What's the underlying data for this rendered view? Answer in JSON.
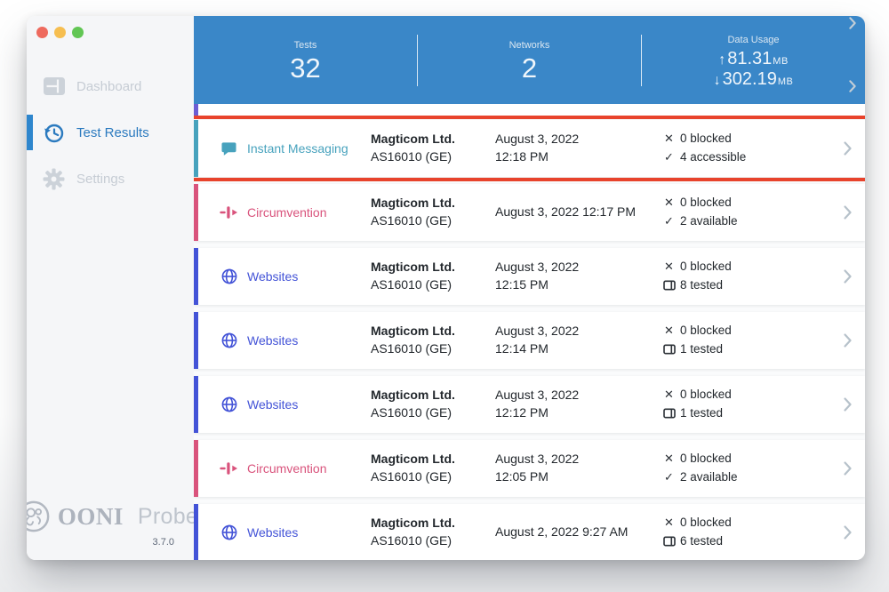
{
  "colors": {
    "header_blue": "#3a87c8",
    "active_blue": "#2b7abf",
    "indicator_blue": "#2e86cd",
    "highlight_red": "#e8432c",
    "instant_messaging": "#47a2bd",
    "circumvention": "#d9537c",
    "websites": "#4353d7",
    "peek_violet": "#6c5dd3"
  },
  "sidebar": {
    "items": [
      {
        "label": "Dashboard",
        "icon": "dashboard-icon",
        "active": false
      },
      {
        "label": "Test Results",
        "icon": "history-icon",
        "active": true
      },
      {
        "label": "Settings",
        "icon": "gear-icon",
        "active": false
      }
    ],
    "logo": {
      "brand": "OONI",
      "product": "Probe",
      "version": "3.7.0"
    }
  },
  "header": {
    "stats": [
      {
        "label": "Tests",
        "value": "32"
      },
      {
        "label": "Networks",
        "value": "2"
      },
      {
        "label": "Data Usage",
        "up": "81.31",
        "down": "302.19",
        "unit": "MB"
      }
    ]
  },
  "results": {
    "rows": [
      {
        "test": "Instant Messaging",
        "icon": "chat-icon",
        "color": "#47a2bd",
        "network": "Magticom Ltd.",
        "asn": "AS16010 (GE)",
        "date": "August 3, 2022 12:18 PM",
        "date_two_lines": true,
        "stats": [
          {
            "icon": "cross-icon",
            "text": "0 blocked"
          },
          {
            "icon": "check-icon",
            "text": "4 accessible"
          }
        ],
        "highlighted": true
      },
      {
        "test": "Circumvention",
        "icon": "circumvention-icon",
        "color": "#d9537c",
        "network": "Magticom Ltd.",
        "asn": "AS16010 (GE)",
        "date": "August 3, 2022 12:17 PM",
        "date_two_lines": false,
        "stats": [
          {
            "icon": "cross-icon",
            "text": "0 blocked"
          },
          {
            "icon": "check-icon",
            "text": "2 available"
          }
        ],
        "highlighted": false
      },
      {
        "test": "Websites",
        "icon": "globe-icon",
        "color": "#4353d7",
        "network": "Magticom Ltd.",
        "asn": "AS16010 (GE)",
        "date": "August 3, 2022 12:15 PM",
        "date_two_lines": true,
        "stats": [
          {
            "icon": "cross-icon",
            "text": "0 blocked"
          },
          {
            "icon": "tested-icon",
            "text": "8 tested"
          }
        ],
        "highlighted": false
      },
      {
        "test": "Websites",
        "icon": "globe-icon",
        "color": "#4353d7",
        "network": "Magticom Ltd.",
        "asn": "AS16010 (GE)",
        "date": "August 3, 2022 12:14 PM",
        "date_two_lines": true,
        "stats": [
          {
            "icon": "cross-icon",
            "text": "0 blocked"
          },
          {
            "icon": "tested-icon",
            "text": "1 tested"
          }
        ],
        "highlighted": false
      },
      {
        "test": "Websites",
        "icon": "globe-icon",
        "color": "#4353d7",
        "network": "Magticom Ltd.",
        "asn": "AS16010 (GE)",
        "date": "August 3, 2022 12:12 PM",
        "date_two_lines": true,
        "stats": [
          {
            "icon": "cross-icon",
            "text": "0 blocked"
          },
          {
            "icon": "tested-icon",
            "text": "1 tested"
          }
        ],
        "highlighted": false
      },
      {
        "test": "Circumvention",
        "icon": "circumvention-icon",
        "color": "#d9537c",
        "network": "Magticom Ltd.",
        "asn": "AS16010 (GE)",
        "date": "August 3, 2022 12:05 PM",
        "date_two_lines": true,
        "stats": [
          {
            "icon": "cross-icon",
            "text": "0 blocked"
          },
          {
            "icon": "check-icon",
            "text": "2 available"
          }
        ],
        "highlighted": false
      },
      {
        "test": "Websites",
        "icon": "globe-icon",
        "color": "#4353d7",
        "network": "Magticom Ltd.",
        "asn": "AS16010 (GE)",
        "date": "August 2, 2022 9:27 AM",
        "date_two_lines": false,
        "stats": [
          {
            "icon": "cross-icon",
            "text": "0 blocked"
          },
          {
            "icon": "tested-icon",
            "text": "6 tested"
          }
        ],
        "highlighted": false
      }
    ]
  }
}
